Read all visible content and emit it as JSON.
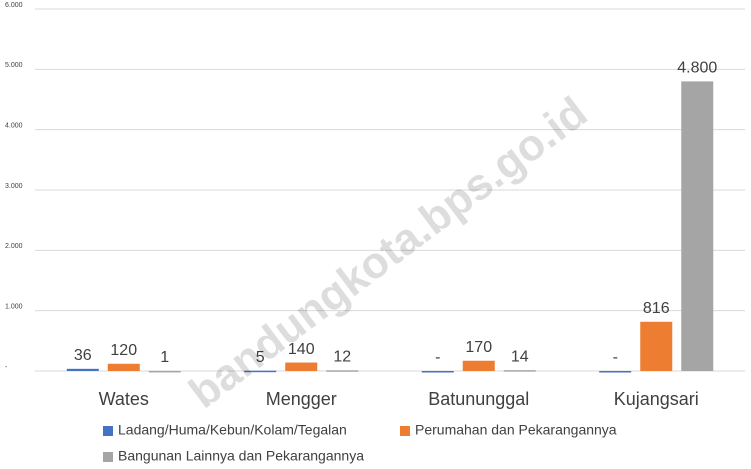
{
  "chart_data": {
    "type": "bar",
    "watermark": "bandungkota.bps.go.id",
    "categories": [
      "Wates",
      "Mengger",
      "Batununggal",
      "Kujangsari"
    ],
    "series": [
      {
        "name": "Ladang/Huma/Kebun/Kolam/Tegalan",
        "color": "#4472c4",
        "values": [
          36,
          5,
          0,
          0
        ],
        "value_labels": [
          "36",
          "5",
          "-",
          "-"
        ]
      },
      {
        "name": "Perumahan dan Pekarangannya",
        "color": "#ed7d31",
        "values": [
          120,
          140,
          170,
          816
        ],
        "value_labels": [
          "120",
          "140",
          "170",
          "816"
        ]
      },
      {
        "name": "Bangunan Lainnya dan Pekarangannya",
        "color": "#a5a5a5",
        "values": [
          1,
          12,
          14,
          4800
        ],
        "value_labels": [
          "1",
          "12",
          "14",
          "4.800"
        ]
      }
    ],
    "ylim": [
      0,
      6000
    ],
    "yticks": [
      {
        "value": 0,
        "label": "-"
      },
      {
        "value": 1000,
        "label": "1.000"
      },
      {
        "value": 2000,
        "label": "2.000"
      },
      {
        "value": 3000,
        "label": "3.000"
      },
      {
        "value": 4000,
        "label": "4.000"
      },
      {
        "value": 5000,
        "label": "5.000"
      },
      {
        "value": 6000,
        "label": "6.000"
      }
    ],
    "grid": true,
    "legend": "bottom"
  }
}
